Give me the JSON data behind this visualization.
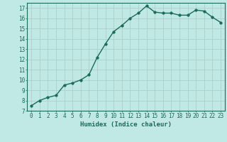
{
  "x": [
    0,
    1,
    2,
    3,
    4,
    5,
    6,
    7,
    8,
    9,
    10,
    11,
    12,
    13,
    14,
    15,
    16,
    17,
    18,
    19,
    20,
    21,
    22,
    23
  ],
  "y": [
    7.5,
    8.0,
    8.3,
    8.5,
    9.5,
    9.7,
    10.0,
    10.5,
    12.2,
    13.5,
    14.7,
    15.3,
    16.0,
    16.5,
    17.2,
    16.6,
    16.5,
    16.5,
    16.3,
    16.3,
    16.8,
    16.7,
    16.1,
    15.6
  ],
  "line_color": "#1a6b5a",
  "bg_color": "#c0e8e4",
  "grid_color": "#a8ccc8",
  "axis_color": "#1a6b5a",
  "xlabel": "Humidex (Indice chaleur)",
  "ylabel_ticks": [
    7,
    8,
    9,
    10,
    11,
    12,
    13,
    14,
    15,
    16,
    17
  ],
  "ylim": [
    7,
    17.5
  ],
  "xlim": [
    -0.5,
    23.5
  ],
  "xticks": [
    0,
    1,
    2,
    3,
    4,
    5,
    6,
    7,
    8,
    9,
    10,
    11,
    12,
    13,
    14,
    15,
    16,
    17,
    18,
    19,
    20,
    21,
    22,
    23
  ],
  "marker": "o",
  "markersize": 2.5,
  "linewidth": 1.0,
  "fontsize_label": 6.5,
  "fontsize_tick": 5.5
}
